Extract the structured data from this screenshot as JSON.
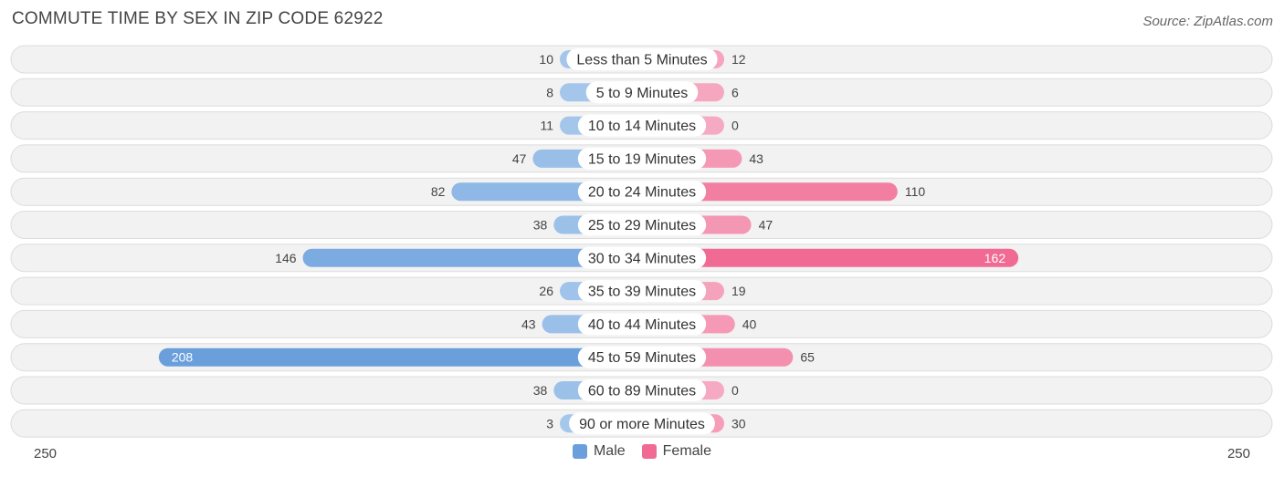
{
  "title": "COMMUTE TIME BY SEX IN ZIP CODE 62922",
  "source": "Source: ZipAtlas.com",
  "colors": {
    "male_light": "#a7c8ec",
    "male_strong": "#6a9fdc",
    "female_light": "#f6a9c2",
    "female_strong": "#f06a93",
    "row_bg": "#f2f2f2",
    "row_border": "#dcdcdc"
  },
  "chart_data": {
    "type": "bar",
    "orientation": "horizontal-diverging",
    "categories": [
      "Less than 5 Minutes",
      "5 to 9 Minutes",
      "10 to 14 Minutes",
      "15 to 19 Minutes",
      "20 to 24 Minutes",
      "25 to 29 Minutes",
      "30 to 34 Minutes",
      "35 to 39 Minutes",
      "40 to 44 Minutes",
      "45 to 59 Minutes",
      "60 to 89 Minutes",
      "90 or more Minutes"
    ],
    "series": [
      {
        "name": "Male",
        "values": [
          10,
          8,
          11,
          47,
          82,
          38,
          146,
          26,
          43,
          208,
          38,
          3
        ]
      },
      {
        "name": "Female",
        "values": [
          12,
          6,
          0,
          43,
          110,
          47,
          162,
          19,
          40,
          65,
          0,
          30
        ]
      }
    ],
    "axis_min_label": "250",
    "axis_max_label": "250",
    "xlim": [
      -250,
      250
    ],
    "legend_position": "bottom-center"
  }
}
